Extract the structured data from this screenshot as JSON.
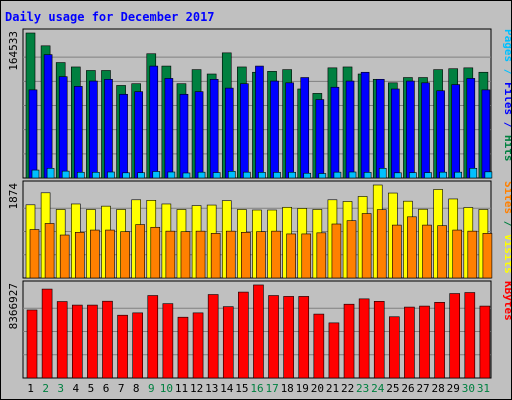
{
  "chart_data": {
    "type": "bar",
    "title": "Daily usage for December 2017",
    "categories": [
      "1",
      "2",
      "3",
      "4",
      "5",
      "6",
      "7",
      "8",
      "9",
      "10",
      "11",
      "12",
      "13",
      "14",
      "15",
      "16",
      "17",
      "18",
      "19",
      "20",
      "21",
      "22",
      "23",
      "24",
      "25",
      "26",
      "27",
      "28",
      "29",
      "30",
      "31"
    ],
    "weekend_days": [
      "2",
      "3",
      "9",
      "10",
      "16",
      "17",
      "23",
      "24",
      "30",
      "31"
    ],
    "panels": [
      {
        "name": "requests",
        "max_label": "164533",
        "ymax": 164533,
        "series": [
          {
            "name": "Hits",
            "color": "#008040",
            "values": [
              164533,
              150000,
              131000,
              126000,
              122000,
              122000,
              105000,
              107000,
              141000,
              127000,
              107000,
              123000,
              118000,
              142000,
              126000,
              120000,
              121000,
              123000,
              101000,
              96000,
              125000,
              126000,
              118000,
              112000,
              108000,
              114000,
              114000,
              123000,
              124000,
              125000,
              120000
            ]
          },
          {
            "name": "Files",
            "color": "#0000ff",
            "values": [
              100000,
              140000,
              115000,
              104000,
              110000,
              112000,
              95000,
              98000,
              127000,
              113000,
              95000,
              98000,
              112000,
              102000,
              107000,
              127000,
              110000,
              108000,
              114000,
              89000,
              103000,
              110000,
              120000,
              112000,
              101000,
              110000,
              108000,
              99000,
              106000,
              113000,
              100000
            ]
          },
          {
            "name": "Pages",
            "color": "#00c0ff",
            "values": [
              9000,
              11000,
              7800,
              6500,
              6500,
              6800,
              5900,
              6000,
              7400,
              6800,
              5700,
              6600,
              6200,
              7600,
              6600,
              6400,
              6400,
              6500,
              5400,
              5100,
              6600,
              6800,
              6400,
              11000,
              5900,
              6100,
              6100,
              6600,
              6600,
              11000,
              7000
            ]
          }
        ],
        "legend": [
          "Pages",
          "Files",
          "Hits"
        ],
        "legend_colors": [
          "#00c0ff",
          "#0000ff",
          "#008040"
        ]
      },
      {
        "name": "visits",
        "max_label": "1874",
        "ymax": 1874,
        "series": [
          {
            "name": "Visits",
            "color": "#ffff00",
            "values": [
              1475,
              1717,
              1381,
              1492,
              1381,
              1448,
              1381,
              1576,
              1565,
              1492,
              1381,
              1459,
              1470,
              1559,
              1381,
              1370,
              1370,
              1425,
              1403,
              1381,
              1576,
              1542,
              1643,
              1874,
              1712,
              1548,
              1386,
              1784,
              1593,
              1420,
              1381
            ]
          },
          {
            "name": "Sites",
            "color": "#ff8000",
            "values": [
              977,
              1099,
              866,
              921,
              966,
              966,
              933,
              1077,
              1022,
              944,
              933,
              944,
              899,
              944,
              921,
              933,
              944,
              888,
              888,
              910,
              1088,
              1155,
              1299,
              1377,
              1066,
              1233,
              1066,
              1055,
              966,
              944,
              899
            ]
          }
        ],
        "legend": [
          "Sites",
          "/",
          "Visits"
        ],
        "legend_colors": [
          "#ff8000",
          "#008040",
          "#ffff00"
        ]
      },
      {
        "name": "volume",
        "max_label": "8366927",
        "ymax": 8366927,
        "series": [
          {
            "name": "KBytes",
            "color": "#ff0000",
            "values": [
              6120000,
              8000000,
              6880000,
              6560000,
              6560000,
              6910000,
              5650000,
              5860000,
              7420000,
              6690000,
              5470000,
              5860000,
              7510000,
              6420000,
              7730000,
              8370000,
              7420000,
              7340000,
              7340000,
              5750000,
              4960000,
              6640000,
              7120000,
              6900000,
              5510000,
              6380000,
              6470000,
              6810000,
              7600000,
              7690000,
              6470000
            ]
          }
        ],
        "legend": [
          "KBytes"
        ],
        "legend_colors": [
          "#ff0000"
        ]
      }
    ],
    "colors": {
      "background": "#c0c0c0",
      "plot_background": "#c0c0c0",
      "title": "#0000ff",
      "weekday_label": "#000000",
      "weekend_label": "#008040",
      "gridline": "#808080"
    }
  }
}
